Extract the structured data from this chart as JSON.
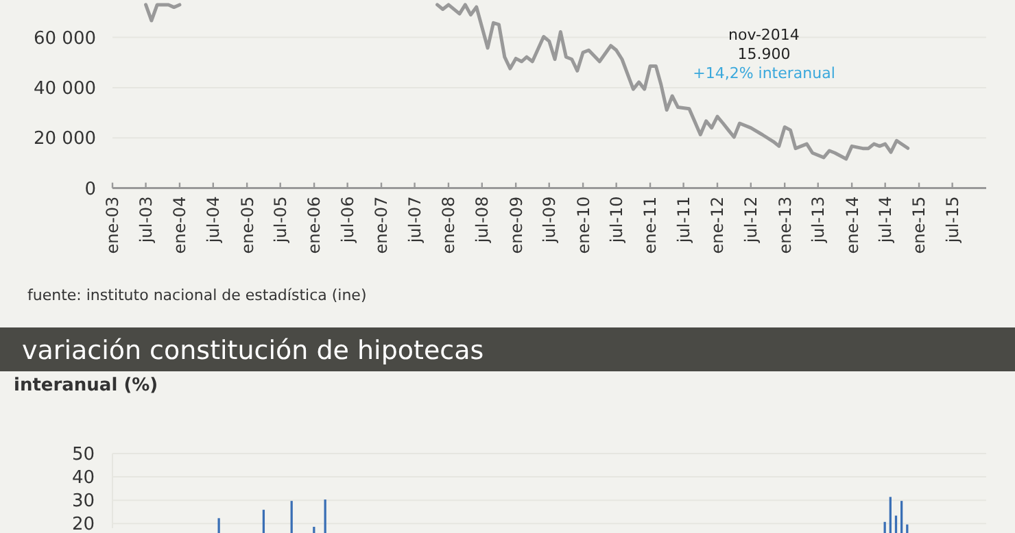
{
  "chart_data": [
    {
      "type": "line",
      "xlim": [
        "2003-01",
        "2016-01"
      ],
      "ylim": [
        0,
        75000
      ],
      "yticks": [
        {
          "value": 0,
          "label": "0"
        },
        {
          "value": 20000,
          "label": "20 000"
        },
        {
          "value": 40000,
          "label": "40 000"
        },
        {
          "value": 60000,
          "label": "60 000"
        }
      ],
      "grid": "y",
      "xticks": [
        {
          "value": "2003-01",
          "label": "ene-03"
        },
        {
          "value": "2003-07",
          "label": "jul-03"
        },
        {
          "value": "2004-01",
          "label": "ene-04"
        },
        {
          "value": "2004-07",
          "label": "jul-04"
        },
        {
          "value": "2005-01",
          "label": "ene-05"
        },
        {
          "value": "2005-07",
          "label": "jul-05"
        },
        {
          "value": "2006-01",
          "label": "ene-06"
        },
        {
          "value": "2006-07",
          "label": "jul-06"
        },
        {
          "value": "2007-01",
          "label": "ene-07"
        },
        {
          "value": "2007-07",
          "label": "jul-07"
        },
        {
          "value": "2008-01",
          "label": "ene-08"
        },
        {
          "value": "2008-07",
          "label": "jul-08"
        },
        {
          "value": "2009-01",
          "label": "ene-09"
        },
        {
          "value": "2009-07",
          "label": "jul-09"
        },
        {
          "value": "2010-01",
          "label": "ene-10"
        },
        {
          "value": "2010-07",
          "label": "jul-10"
        },
        {
          "value": "2011-01",
          "label": "ene-11"
        },
        {
          "value": "2011-07",
          "label": "jul-11"
        },
        {
          "value": "2012-01",
          "label": "ene-12"
        },
        {
          "value": "2012-07",
          "label": "jul-12"
        },
        {
          "value": "2013-01",
          "label": "ene-13"
        },
        {
          "value": "2013-07",
          "label": "jul-13"
        },
        {
          "value": "2014-01",
          "label": "ene-14"
        },
        {
          "value": "2014-07",
          "label": "jul-14"
        },
        {
          "value": "2015-01",
          "label": "ene-15"
        },
        {
          "value": "2015-07",
          "label": "jul-15"
        }
      ],
      "series": [
        {
          "color": "#999999",
          "x": [
            "2003-07",
            "2003-08",
            "2003-09",
            "2003-11",
            "2003-12",
            "2004-01",
            "2004-02",
            "2007-10",
            "2007-11",
            "2007-12",
            "2008-01",
            "2008-03",
            "2008-04",
            "2008-05",
            "2008-06",
            "2008-08",
            "2008-09",
            "2008-10",
            "2008-11",
            "2008-12",
            "2009-01",
            "2009-02",
            "2009-03",
            "2009-04",
            "2009-06",
            "2009-07",
            "2009-08",
            "2009-09",
            "2009-10",
            "2009-11",
            "2009-12",
            "2010-01",
            "2010-02",
            "2010-04",
            "2010-06",
            "2010-07",
            "2010-08",
            "2010-10",
            "2010-11",
            "2010-12",
            "2011-01",
            "2011-02",
            "2011-03",
            "2011-04",
            "2011-05",
            "2011-06",
            "2011-08",
            "2011-10",
            "2011-11",
            "2011-12",
            "2012-01",
            "2012-02",
            "2012-03",
            "2012-04",
            "2012-05",
            "2012-07",
            "2012-09",
            "2012-11",
            "2012-12",
            "2013-01",
            "2013-02",
            "2013-03",
            "2013-05",
            "2013-06",
            "2013-08",
            "2013-09",
            "2013-10",
            "2013-12",
            "2014-01",
            "2014-03",
            "2014-04",
            "2014-05",
            "2014-06",
            "2014-07",
            "2014-08",
            "2014-09",
            "2014-11"
          ],
          "values": [
            73000,
            66700,
            73000,
            73000,
            72000,
            73000,
            null,
            null,
            73000,
            71200,
            73000,
            69400,
            73000,
            69000,
            72100,
            55800,
            65800,
            65100,
            52200,
            47600,
            51600,
            50400,
            52200,
            50400,
            60300,
            58500,
            51300,
            62200,
            52200,
            51300,
            46700,
            54000,
            54900,
            50400,
            56700,
            54900,
            51300,
            39400,
            42200,
            39400,
            48600,
            48600,
            41200,
            31100,
            36700,
            32200,
            31600,
            21300,
            26700,
            24000,
            28500,
            25800,
            23100,
            20300,
            25800,
            24000,
            21300,
            18500,
            16700,
            24300,
            23100,
            15800,
            17600,
            14000,
            12200,
            14900,
            14000,
            11600,
            16700,
            15800,
            15800,
            17600,
            16700,
            17600,
            14300,
            18900,
            15900
          ]
        }
      ],
      "annotations": [
        "nov-2014",
        "15.900",
        "+14,2% interanual",
        "fuente: instituto nacional de estadística (ine)"
      ]
    },
    {
      "type": "bar",
      "title": "variación constitución de hipotecas",
      "ylabel": "interanual (%)",
      "ylim": [
        18,
        50
      ],
      "yticks": [
        20,
        30,
        40,
        50
      ],
      "grid": "y",
      "tick_labels": "y",
      "categories": [
        null,
        null,
        null,
        null,
        null,
        null,
        null,
        null,
        null,
        null,
        null,
        null,
        null,
        null,
        null,
        null,
        null,
        null,
        null,
        null,
        null,
        null,
        null,
        null,
        null,
        null,
        null,
        null,
        null,
        null,
        null,
        null,
        null,
        null,
        null,
        null,
        null,
        null,
        null,
        null,
        null,
        null,
        null,
        null,
        null,
        null,
        null,
        null,
        null,
        null,
        null,
        null,
        null,
        null,
        null,
        null,
        null,
        null,
        null,
        null,
        null,
        null,
        null,
        null,
        null,
        null,
        null,
        null,
        null,
        null,
        null,
        null,
        null,
        null,
        null,
        null,
        null,
        null,
        null,
        null,
        null,
        null,
        null,
        null,
        null,
        null,
        null,
        null,
        null,
        null,
        null,
        null,
        null,
        null,
        null,
        null,
        null,
        null,
        null,
        null,
        null,
        null,
        null,
        null,
        null,
        null,
        null,
        null,
        null,
        null,
        null,
        null,
        null,
        null,
        null,
        null,
        null,
        null,
        null,
        null,
        null,
        null,
        null,
        null,
        null,
        null,
        null,
        null,
        null,
        null,
        null,
        null,
        null,
        null,
        null,
        null,
        null,
        null,
        null,
        null,
        null,
        null,
        null,
        null,
        null,
        null,
        null,
        null,
        null,
        null,
        null,
        null,
        null,
        null,
        null,
        null
      ],
      "values": [
        null,
        null,
        null,
        null,
        null,
        null,
        null,
        null,
        null,
        null,
        null,
        null,
        null,
        null,
        null,
        null,
        null,
        null,
        null,
        22.3,
        null,
        null,
        null,
        null,
        null,
        null,
        null,
        25.9,
        null,
        null,
        null,
        null,
        29.7,
        null,
        null,
        null,
        18.6,
        null,
        30.3,
        null,
        null,
        null,
        null,
        null,
        null,
        null,
        null,
        null,
        null,
        null,
        null,
        null,
        null,
        null,
        null,
        null,
        null,
        null,
        null,
        null,
        null,
        null,
        null,
        null,
        null,
        null,
        null,
        null,
        null,
        null,
        null,
        null,
        null,
        null,
        null,
        null,
        null,
        null,
        null,
        null,
        null,
        null,
        null,
        null,
        null,
        null,
        null,
        null,
        null,
        null,
        null,
        null,
        null,
        null,
        null,
        null,
        null,
        null,
        null,
        null,
        null,
        null,
        null,
        null,
        null,
        null,
        null,
        null,
        null,
        null,
        null,
        null,
        null,
        null,
        null,
        null,
        null,
        null,
        null,
        null,
        null,
        null,
        null,
        null,
        null,
        null,
        null,
        null,
        null,
        null,
        null,
        null,
        null,
        null,
        null,
        null,
        null,
        null,
        20.7,
        31.4,
        23.4,
        29.7,
        19.6,
        null,
        null,
        null,
        null,
        null,
        null,
        null,
        null,
        null,
        null,
        null,
        null,
        null
      ],
      "color": "#3a6fb5"
    }
  ]
}
